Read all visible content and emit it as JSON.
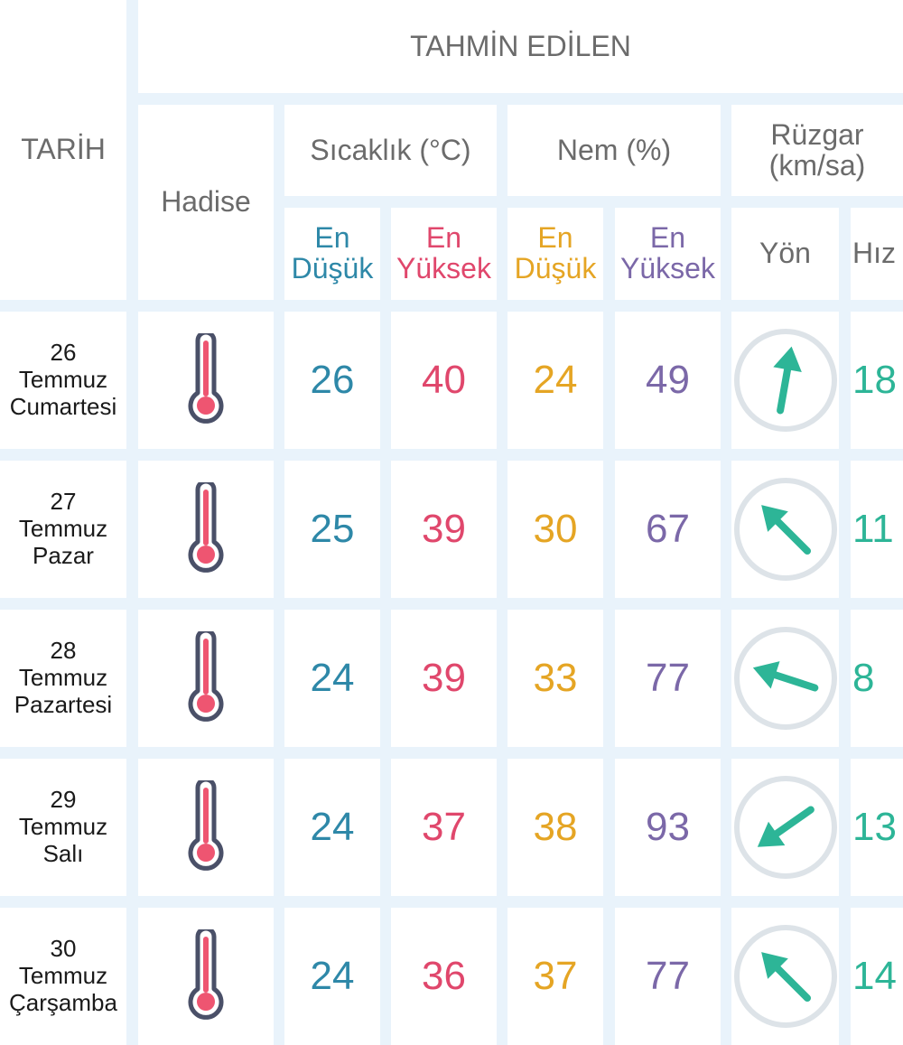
{
  "header": {
    "tarih": "TARİH",
    "tahmin": "TAHMİN EDİLEN",
    "hadise": "Hadise",
    "sicaklik": "Sıcaklık (°C)",
    "nem": "Nem (%)",
    "ruzgar_line1": "Rüzgar",
    "ruzgar_line2": "(km/sa)",
    "en": "En",
    "dusuk": "Düşük",
    "yuksek": "Yüksek",
    "yon": "Yön",
    "hiz": "Hız"
  },
  "colors": {
    "low_temp": "#2e88a8",
    "high_temp": "#e0476c",
    "low_humidity": "#e5a524",
    "high_humidity": "#7b68a8",
    "wind": "#2db597"
  },
  "rows": [
    {
      "day": "26",
      "month": "Temmuz",
      "weekday": "Cumartesi",
      "icon": "thermometer-icon",
      "temp_low": "26",
      "temp_high": "40",
      "hum_low": "24",
      "hum_high": "49",
      "wind_dir_deg": "190",
      "wind_speed": "18"
    },
    {
      "day": "27",
      "month": "Temmuz",
      "weekday": "Pazar",
      "icon": "thermometer-icon",
      "temp_low": "25",
      "temp_high": "39",
      "hum_low": "30",
      "hum_high": "67",
      "wind_dir_deg": "135",
      "wind_speed": "11"
    },
    {
      "day": "28",
      "month": "Temmuz",
      "weekday": "Pazartesi",
      "icon": "thermometer-icon",
      "temp_low": "24",
      "temp_high": "39",
      "hum_low": "33",
      "hum_high": "77",
      "wind_dir_deg": "108",
      "wind_speed": "8"
    },
    {
      "day": "29",
      "month": "Temmuz",
      "weekday": "Salı",
      "icon": "thermometer-icon",
      "temp_low": "24",
      "temp_high": "37",
      "hum_low": "38",
      "hum_high": "93",
      "wind_dir_deg": "55",
      "wind_speed": "13"
    },
    {
      "day": "30",
      "month": "Temmuz",
      "weekday": "Çarşamba",
      "icon": "thermometer-icon",
      "temp_low": "24",
      "temp_high": "36",
      "hum_low": "37",
      "hum_high": "77",
      "wind_dir_deg": "135",
      "wind_speed": "14"
    }
  ]
}
